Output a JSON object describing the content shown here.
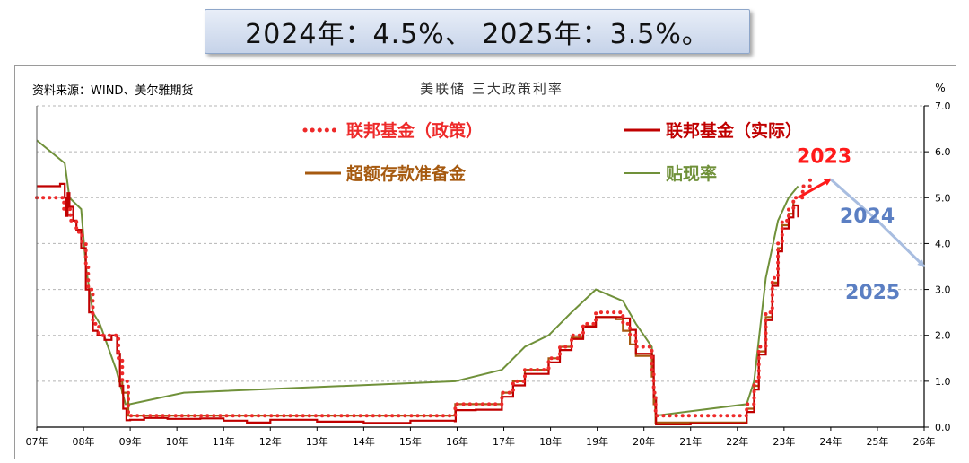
{
  "banner": {
    "text": "2024年：4.5%、 2025年：3.5%。"
  },
  "chart_data": {
    "type": "line",
    "title": "美联储 三大政策利率",
    "source": "资料来源：WIND、美尔雅期货",
    "unit": "%",
    "ylim": [
      0,
      7
    ],
    "yticks": [
      "0.0",
      "1.0",
      "2.0",
      "3.0",
      "4.0",
      "5.0",
      "6.0",
      "7.0"
    ],
    "xlim": [
      2007,
      2026
    ],
    "xticks": [
      "07年",
      "08年",
      "09年",
      "10年",
      "11年",
      "12年",
      "13年",
      "14年",
      "15年",
      "16年",
      "17年",
      "18年",
      "19年",
      "20年",
      "21年",
      "22年",
      "23年",
      "24年",
      "25年",
      "26年"
    ],
    "grid": true,
    "legend_position": "top-center",
    "series": [
      {
        "name": "联邦基金（政策）",
        "color": "#ee2a2a",
        "style": "dotted",
        "x": [
          2007.0,
          2007.58,
          2007.72,
          2007.85,
          2007.97,
          2008.05,
          2008.1,
          2008.2,
          2008.25,
          2008.33,
          2008.75,
          2008.83,
          2008.96,
          2015.96,
          2016.96,
          2017.2,
          2017.45,
          2017.96,
          2018.2,
          2018.45,
          2018.7,
          2018.97,
          2019.55,
          2019.7,
          2019.83,
          2020.17,
          2020.21,
          2020.25,
          2022.2,
          2022.36,
          2022.46,
          2022.61,
          2022.75,
          2022.87,
          2022.96,
          2023.1,
          2023.2,
          2023.4,
          2023.56
        ],
        "y": [
          5.0,
          4.75,
          4.5,
          4.25,
          4.0,
          3.5,
          3.0,
          2.25,
          2.25,
          2.0,
          1.5,
          1.0,
          0.25,
          0.5,
          0.75,
          1.0,
          1.25,
          1.5,
          1.75,
          2.0,
          2.25,
          2.5,
          2.25,
          2.0,
          1.75,
          1.25,
          0.75,
          0.25,
          0.5,
          1.0,
          1.75,
          2.5,
          3.25,
          4.0,
          4.5,
          4.75,
          5.0,
          5.25,
          5.5
        ]
      },
      {
        "name": "联邦基金（实际）",
        "color": "#c00000",
        "style": "solid",
        "x": [
          2007.0,
          2007.25,
          2007.5,
          2007.6,
          2007.62,
          2007.66,
          2007.7,
          2007.78,
          2007.85,
          2007.95,
          2008.05,
          2008.12,
          2008.2,
          2008.3,
          2008.45,
          2008.6,
          2008.72,
          2008.78,
          2008.85,
          2008.92,
          2009.0,
          2009.3,
          2009.8,
          2010.5,
          2011.0,
          2011.5,
          2012.0,
          2013.0,
          2014.0,
          2015.0,
          2015.95,
          2015.97,
          2016.4,
          2016.96,
          2017.2,
          2017.45,
          2017.96,
          2018.2,
          2018.45,
          2018.7,
          2018.97,
          2019.55,
          2019.7,
          2019.83,
          2020.17,
          2020.21,
          2020.26,
          2021.0,
          2022.0,
          2022.2,
          2022.36,
          2022.46,
          2022.61,
          2022.75,
          2022.87,
          2022.96,
          2023.1,
          2023.2,
          2023.3
        ],
        "y": [
          5.25,
          5.25,
          5.3,
          5.0,
          4.6,
          5.1,
          4.8,
          4.5,
          4.3,
          3.9,
          3.0,
          2.5,
          2.1,
          2.0,
          1.9,
          2.0,
          1.6,
          0.9,
          0.4,
          0.15,
          0.16,
          0.2,
          0.18,
          0.19,
          0.14,
          0.1,
          0.16,
          0.12,
          0.09,
          0.14,
          0.13,
          0.37,
          0.38,
          0.66,
          0.91,
          1.16,
          1.41,
          1.68,
          1.92,
          2.19,
          2.4,
          2.37,
          2.12,
          1.6,
          1.55,
          0.65,
          0.06,
          0.08,
          0.08,
          0.33,
          0.82,
          1.58,
          2.33,
          3.08,
          3.83,
          4.33,
          4.57,
          4.83,
          4.57
        ]
      },
      {
        "name": "超额存款准备金",
        "color": "#a65a10",
        "style": "solid",
        "x": [
          2008.75,
          2008.83,
          2008.96,
          2015.96,
          2016.96,
          2017.2,
          2017.45,
          2017.96,
          2018.2,
          2018.45,
          2018.7,
          2018.97,
          2019.4,
          2019.55,
          2019.7,
          2019.83,
          2020.17,
          2020.21,
          2020.25,
          2022.2,
          2022.36,
          2022.46,
          2022.61,
          2022.75,
          2022.87,
          2022.96,
          2023.1,
          2023.2
        ],
        "y": [
          1.0,
          0.75,
          0.25,
          0.5,
          0.75,
          1.0,
          1.25,
          1.5,
          1.75,
          1.95,
          2.2,
          2.4,
          2.35,
          2.1,
          1.8,
          1.55,
          1.1,
          0.5,
          0.1,
          0.4,
          0.9,
          1.65,
          2.4,
          3.15,
          3.9,
          4.4,
          4.65,
          4.9
        ]
      },
      {
        "name": "贴现率",
        "color": "#70913a",
        "style": "solid",
        "x": [
          2007.0,
          2007.6,
          2007.7,
          2007.95,
          2008.05,
          2008.2,
          2008.35,
          2008.7,
          2008.9,
          2009.0,
          2010.15,
          2015.96,
          2016.96,
          2017.45,
          2017.96,
          2018.45,
          2018.97,
          2019.55,
          2019.83,
          2020.17,
          2020.25,
          2022.2,
          2022.36,
          2022.61,
          2022.87,
          2023.1,
          2023.3
        ],
        "y": [
          6.25,
          5.75,
          5.0,
          4.75,
          3.5,
          2.5,
          2.25,
          1.25,
          0.5,
          0.5,
          0.75,
          1.0,
          1.25,
          1.75,
          2.0,
          2.5,
          3.0,
          2.75,
          2.25,
          1.75,
          0.25,
          0.5,
          1.0,
          3.25,
          4.5,
          5.0,
          5.25
        ]
      }
    ],
    "annotations": [
      {
        "text": "2023",
        "color": "#ff1a1a",
        "x": 2024.0,
        "y": 5.45
      },
      {
        "text": "2024",
        "color": "#5b7fc3",
        "x": 2024.5,
        "y": 4.5
      },
      {
        "text": "2025",
        "color": "#5b7fc3",
        "x": 2025.5,
        "y": 3.5
      }
    ],
    "projection": [
      {
        "color": "#ff1a1a",
        "x": [
          2023.3,
          2024.0
        ],
        "y": [
          5.0,
          5.4
        ]
      },
      {
        "color": "#a8bde0",
        "x": [
          2024.0,
          2025.0
        ],
        "y": [
          5.4,
          4.5
        ]
      },
      {
        "color": "#a8bde0",
        "x": [
          2025.0,
          2026.0
        ],
        "y": [
          4.5,
          3.5
        ]
      }
    ]
  }
}
